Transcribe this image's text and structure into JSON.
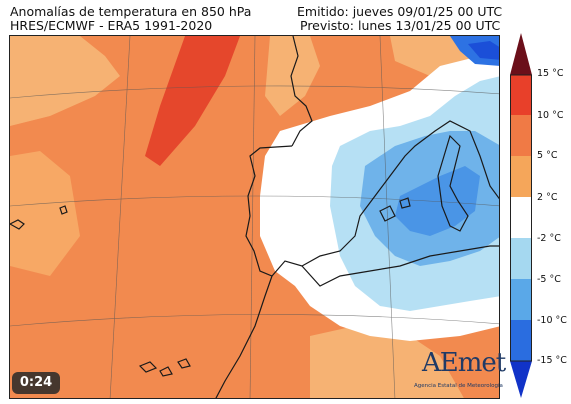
{
  "header": {
    "title": "Anomalías de temperatura en 850 hPa",
    "model": "HRES/ECMWF - ERA5 1991-2020",
    "issued": "Emitido: jueves 09/01/25 00 UTC",
    "forecast": "Previsto: lunes 13/01/25 00 UTC"
  },
  "colorbar": {
    "labels": [
      "15 °C",
      "10 °C",
      "5 °C",
      "2 °C",
      "-2 °C",
      "-5 °C",
      "-10 °C",
      "-15 °C"
    ],
    "colors": [
      "#6b0f1a",
      "#e8402a",
      "#f07a45",
      "#f5a65a",
      "#ffffff",
      "#a5d8f0",
      "#5aa8e8",
      "#2a6de0",
      "#1133c8"
    ]
  },
  "video": {
    "timer": "0:24"
  },
  "logo": {
    "name": "AEmet",
    "subtitle": "Agencia Estatal de Meteorología"
  },
  "palette": {
    "ocean_warm": "#f28a4f",
    "light_orange": "#f6b273",
    "red_core": "#e5472c",
    "white_zone": "#ffffff",
    "pale_blue": "#b6e0f4",
    "mid_blue": "#6fb3ea",
    "deep_blue": "#2d72e3",
    "coast": "#1a1a1a"
  }
}
